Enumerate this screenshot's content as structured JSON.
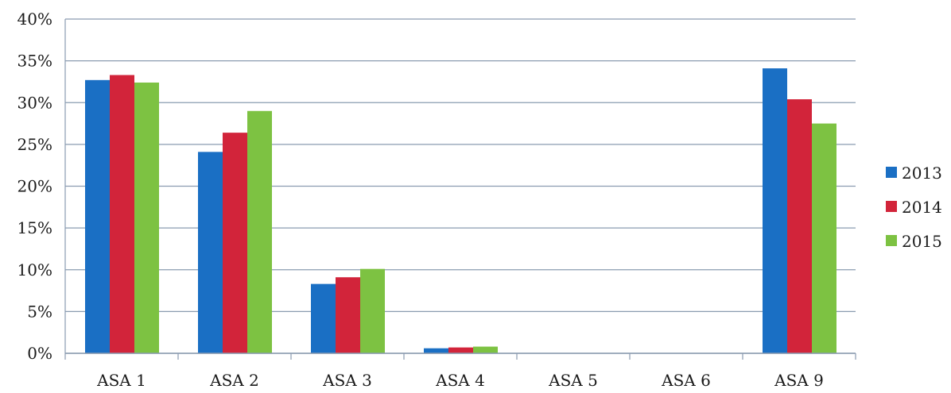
{
  "chart_data": {
    "type": "bar",
    "categories": [
      "ASA 1",
      "ASA 2",
      "ASA 3",
      "ASA 4",
      "ASA 5",
      "ASA 6",
      "ASA 9"
    ],
    "series": [
      {
        "name": "2013",
        "color": "#1a6fc4",
        "values": [
          32.7,
          24.1,
          8.3,
          0.6,
          0,
          0,
          34.1
        ]
      },
      {
        "name": "2014",
        "color": "#d2243a",
        "values": [
          33.3,
          26.4,
          9.1,
          0.7,
          0,
          0,
          30.4
        ]
      },
      {
        "name": "2015",
        "color": "#7dc242",
        "values": [
          32.4,
          29.0,
          10.1,
          0.8,
          0,
          0,
          27.5
        ]
      }
    ],
    "ylim": [
      0,
      40
    ],
    "yticks": [
      "0%",
      "5%",
      "10%",
      "15%",
      "20%",
      "25%",
      "30%",
      "35%",
      "40%"
    ],
    "grid": true,
    "legend_position": "right",
    "title": "",
    "xlabel": "",
    "ylabel": ""
  }
}
